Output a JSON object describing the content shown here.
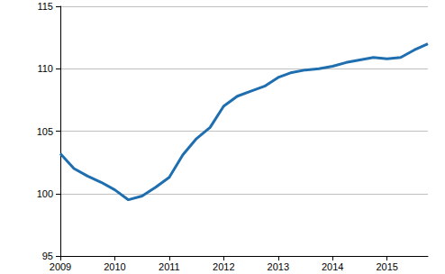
{
  "chart_data": {
    "type": "line",
    "categories": [
      "2009",
      null,
      null,
      null,
      "2010",
      null,
      null,
      null,
      "2011",
      null,
      null,
      null,
      "2012",
      null,
      null,
      null,
      "2013",
      null,
      null,
      null,
      "2014",
      null,
      null,
      null,
      "2015",
      null,
      null,
      null
    ],
    "values": [
      103.2,
      102.0,
      101.4,
      100.9,
      100.3,
      99.5,
      99.8,
      100.5,
      101.3,
      103.1,
      104.4,
      105.3,
      107.0,
      107.8,
      108.2,
      108.6,
      109.3,
      109.7,
      109.9,
      110.0,
      110.2,
      110.5,
      110.7,
      110.9,
      110.8,
      110.9,
      111.5,
      112.0
    ],
    "color": "#1f6fb0",
    "ylim": [
      95,
      115
    ],
    "yticks": [
      95,
      100,
      105,
      110,
      115
    ],
    "grid": true
  }
}
